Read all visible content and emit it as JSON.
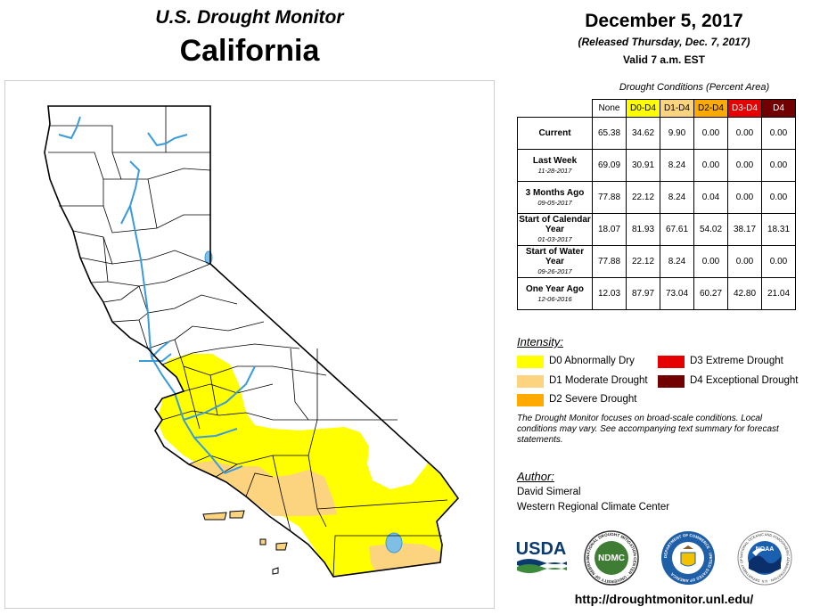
{
  "header": {
    "title": "U.S. Drought Monitor",
    "region": "California",
    "date": "December 5, 2017",
    "released": "(Released Thursday, Dec. 7, 2017)",
    "valid": "Valid 7 a.m. EST"
  },
  "table": {
    "caption": "Drought Conditions (Percent Area)",
    "columns": [
      "None",
      "D0-D4",
      "D1-D4",
      "D2-D4",
      "D3-D4",
      "D4"
    ],
    "rows": [
      {
        "label": "Current",
        "date": "",
        "values": [
          "65.38",
          "34.62",
          "9.90",
          "0.00",
          "0.00",
          "0.00"
        ]
      },
      {
        "label": "Last Week",
        "date": "11-28-2017",
        "values": [
          "69.09",
          "30.91",
          "8.24",
          "0.00",
          "0.00",
          "0.00"
        ]
      },
      {
        "label": "3 Months Ago",
        "date": "09-05-2017",
        "values": [
          "77.88",
          "22.12",
          "8.24",
          "0.04",
          "0.00",
          "0.00"
        ]
      },
      {
        "label": "Start of Calendar Year",
        "date": "01-03-2017",
        "values": [
          "18.07",
          "81.93",
          "67.61",
          "54.02",
          "38.17",
          "18.31"
        ]
      },
      {
        "label": "Start of Water Year",
        "date": "09-26-2017",
        "values": [
          "77.88",
          "22.12",
          "8.24",
          "0.00",
          "0.00",
          "0.00"
        ]
      },
      {
        "label": "One Year Ago",
        "date": "12-06-2016",
        "values": [
          "12.03",
          "87.97",
          "73.04",
          "60.27",
          "42.80",
          "21.04"
        ]
      }
    ]
  },
  "legend": {
    "title": "Intensity:",
    "items": [
      {
        "label": "D0 Abnormally Dry",
        "color": "#ffff00"
      },
      {
        "label": "D1 Moderate Drought",
        "color": "#fcd37f"
      },
      {
        "label": "D2 Severe Drought",
        "color": "#ffaa00"
      },
      {
        "label": "D3 Extreme Drought",
        "color": "#e60000"
      },
      {
        "label": "D4 Exceptional Drought",
        "color": "#730000"
      }
    ]
  },
  "note": "The Drought Monitor focuses on broad-scale conditions. Local conditions may vary. See accompanying text summary for forecast statements.",
  "author": {
    "title": "Author:",
    "name": "David Simeral",
    "org": "Western Regional Climate Center"
  },
  "logos": {
    "usda": "USDA",
    "ndmc": "NDMC",
    "ndmc_ring": "NATIONAL DROUGHT MITIGATION CENTER · UNIVERSITY OF NEBRASKA",
    "doc_ring": "DEPARTMENT OF COMMERCE · UNITED STATES OF AMERICA",
    "noaa": "NOAA",
    "noaa_ring": "NATIONAL OCEANIC AND ATMOSPHERIC ADMINISTRATION · U.S. DEPARTMENT OF COMMERCE"
  },
  "url": "http://droughtmonitor.unl.edu/",
  "map": {
    "colors": {
      "d0": "#ffff00",
      "d1": "#fcd37f",
      "water": "#3a9bd9",
      "outline": "#000000"
    }
  }
}
